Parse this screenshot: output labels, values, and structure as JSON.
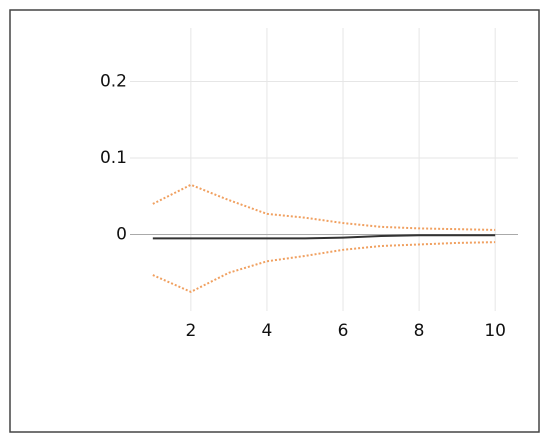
{
  "chart_data": {
    "type": "line",
    "x": [
      1,
      2,
      3,
      4,
      5,
      6,
      7,
      8,
      9,
      10
    ],
    "series": [
      {
        "color": "#f0a060",
        "style": "dotted",
        "values": [
          0.04,
          0.065,
          0.045,
          0.027,
          0.022,
          0.015,
          0.01,
          0.008,
          0.007,
          0.006
        ]
      },
      {
        "color": "#333333",
        "style": "solid",
        "values": [
          -0.005,
          -0.005,
          -0.005,
          -0.005,
          -0.005,
          -0.004,
          -0.002,
          -0.001,
          -0.001,
          -0.001
        ]
      },
      {
        "color": "#f0a060",
        "style": "dotted",
        "values": [
          -0.053,
          -0.075,
          -0.05,
          -0.035,
          -0.028,
          -0.02,
          -0.015,
          -0.013,
          -0.011,
          -0.01
        ]
      }
    ],
    "xlim": [
      0.4,
      10.6
    ],
    "ylim": [
      -0.1,
      0.27
    ],
    "xticks": [
      2,
      4,
      6,
      8,
      10
    ],
    "yticks": [
      0,
      0.1,
      0.2
    ],
    "grid": true
  }
}
